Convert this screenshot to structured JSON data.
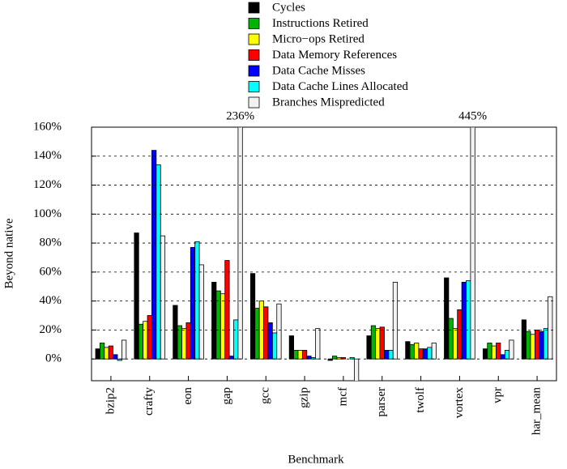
{
  "chart_data": {
    "type": "bar",
    "x_label": "Benchmark",
    "y_label": "Beyond native",
    "categories": [
      "bzip2",
      "crafty",
      "eon",
      "gap",
      "gcc",
      "gzip",
      "mcf",
      "parser",
      "twolf",
      "vortex",
      "vpr",
      "har_mean"
    ],
    "series": [
      {
        "name": "Cycles",
        "color": "#000000",
        "values": [
          7,
          87,
          37,
          53,
          59,
          16,
          -1,
          16,
          12,
          56,
          7,
          27
        ]
      },
      {
        "name": "Instructions Retired",
        "color": "#00b400",
        "values": [
          11,
          24,
          23,
          47,
          35,
          6,
          2,
          23,
          10,
          28,
          11,
          19
        ]
      },
      {
        "name": "Micro−ops Retired",
        "color": "#ffff00",
        "values": [
          8,
          26,
          21,
          45,
          40,
          6,
          1,
          21,
          11,
          21,
          9,
          17
        ]
      },
      {
        "name": "Data Memory References",
        "color": "#ff0000",
        "values": [
          9,
          30,
          25,
          68,
          36,
          6,
          1,
          22,
          7,
          34,
          11,
          20
        ]
      },
      {
        "name": "Data Cache Misses",
        "color": "#0000ff",
        "values": [
          3,
          144,
          77,
          2,
          25,
          2,
          0,
          6,
          7,
          53,
          3,
          19
        ]
      },
      {
        "name": "Data Cache Lines Allocated",
        "color": "#00ffff",
        "values": [
          -1,
          134,
          81,
          27,
          18,
          1,
          1,
          6,
          8,
          54,
          6,
          21
        ]
      },
      {
        "name": "Branches Mispredicted",
        "color": "#f2f2f2",
        "values": [
          13,
          85,
          65,
          236,
          38,
          21,
          -16,
          53,
          11,
          445,
          13,
          43
        ],
        "value_labels": [
          null,
          null,
          null,
          "236%",
          null,
          null,
          null,
          null,
          null,
          "445%",
          null,
          null
        ]
      }
    ],
    "ylim": [
      -15,
      160
    ],
    "yticks": [
      {
        "value": 0,
        "label": "0%"
      },
      {
        "value": 20,
        "label": "20%"
      },
      {
        "value": 40,
        "label": "40%"
      },
      {
        "value": 60,
        "label": "60%"
      },
      {
        "value": 80,
        "label": "80%"
      },
      {
        "value": 100,
        "label": "100%"
      },
      {
        "value": 120,
        "label": "120%"
      },
      {
        "value": 140,
        "label": "140%"
      },
      {
        "value": 160,
        "label": "160%"
      }
    ],
    "grid": true,
    "legend": "top"
  }
}
